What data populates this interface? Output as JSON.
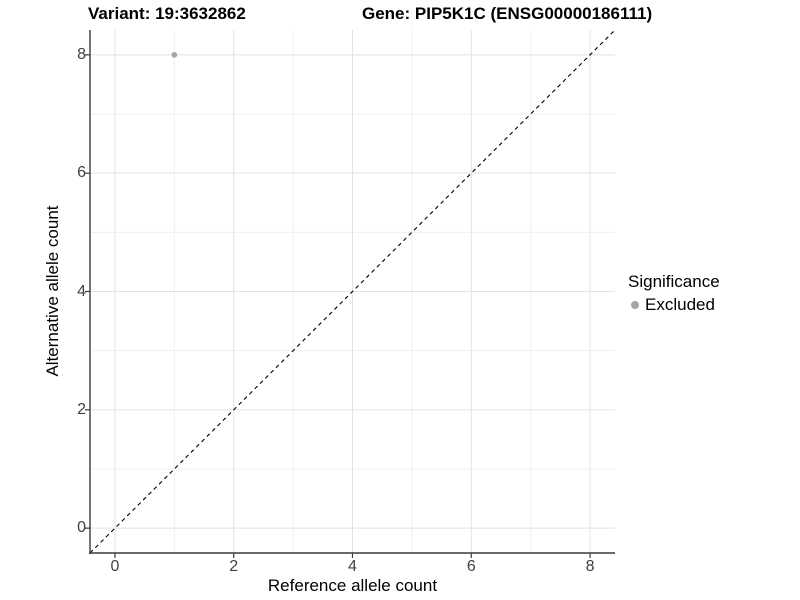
{
  "chart_data": {
    "type": "scatter",
    "title_variant": "Variant: 19:3632862",
    "title_gene": "Gene: PIP5K1C (ENSG00000186111)",
    "xlabel": "Reference allele count",
    "ylabel": "Alternative allele count",
    "xlim": [
      -0.42,
      8.42
    ],
    "ylim": [
      -0.42,
      8.42
    ],
    "x_major_ticks": [
      0,
      2,
      4,
      6,
      8
    ],
    "y_major_ticks": [
      0,
      2,
      4,
      6,
      8
    ],
    "x_minor_gridlines": [
      1,
      3,
      5,
      7
    ],
    "y_minor_gridlines": [
      1,
      3,
      5,
      7
    ],
    "grid": "major+minor",
    "legend_position": "right",
    "series": [
      {
        "name": "Excluded",
        "color": "#a5a5a5",
        "point_radius": 2.8,
        "points": [
          [
            1,
            8
          ]
        ]
      }
    ],
    "reference_line": {
      "slope": 1,
      "intercept": 0,
      "linetype": "dashed",
      "color": "#000000"
    }
  },
  "legend": {
    "title": "Significance",
    "items": [
      {
        "label": "Excluded",
        "color": "#a5a5a5"
      }
    ]
  },
  "colors": {
    "background": "#ffffff",
    "grid_major": "#e2e2e2",
    "grid_minor": "#efefef",
    "axis_line": "#3a3a3a",
    "tick_mark": "#3a3a3a",
    "tick_label": "#404040"
  }
}
